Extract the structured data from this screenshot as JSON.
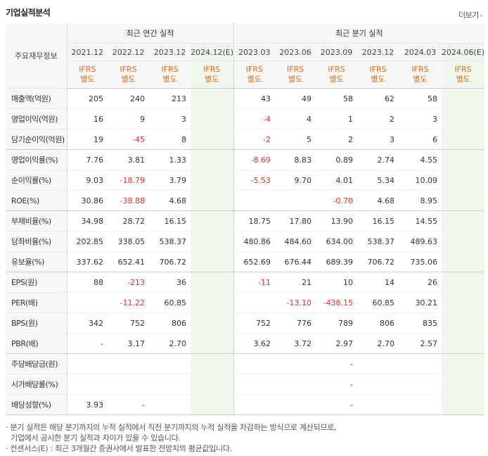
{
  "header": {
    "title": "기업실적분석",
    "more_label": "더보기",
    "more_arrow": "›"
  },
  "table": {
    "row_header_label": "주요재무정보",
    "groups": {
      "annual": "최근 연간 실적",
      "quarterly": "최근 분기 실적"
    },
    "periods": [
      "2021.12",
      "2022.12",
      "2023.12",
      "2024.12(E)",
      "2023.03",
      "2023.06",
      "2023.09",
      "2023.12",
      "2024.03",
      "2024.06(E)"
    ],
    "standards": [
      "IFRS\n별도",
      "IFRS\n별도",
      "IFRS\n별도",
      "IFRS\n별도",
      "IFRS\n별도",
      "IFRS\n별도",
      "IFRS\n별도",
      "IFRS\n별도",
      "IFRS\n별도",
      "IFRS\n별도"
    ],
    "rows": [
      {
        "label": "매출액(억원)",
        "values": [
          "205",
          "240",
          "213",
          "",
          "43",
          "49",
          "58",
          "62",
          "58",
          ""
        ]
      },
      {
        "label": "영업이익(억원)",
        "values": [
          "16",
          "9",
          "3",
          "",
          "-4",
          "4",
          "1",
          "2",
          "3",
          ""
        ]
      },
      {
        "label": "당기순이익(억원)",
        "values": [
          "19",
          "-45",
          "8",
          "",
          "-2",
          "5",
          "2",
          "3",
          "6",
          ""
        ]
      },
      {
        "label": "영업이익률(%)",
        "values": [
          "7.76",
          "3.81",
          "1.33",
          "",
          "-8.69",
          "8.83",
          "0.89",
          "2.74",
          "4.55",
          ""
        ]
      },
      {
        "label": "순이익률(%)",
        "values": [
          "9.03",
          "-18.79",
          "3.79",
          "",
          "-5.53",
          "9.70",
          "4.01",
          "5.34",
          "10.09",
          ""
        ]
      },
      {
        "label": "ROE(%)",
        "values": [
          "30.86",
          "-38.88",
          "4.68",
          "",
          "",
          "",
          "-0.70",
          "4.68",
          "8.95",
          ""
        ]
      },
      {
        "label": "부채비율(%)",
        "values": [
          "34.98",
          "28.72",
          "16.15",
          "",
          "18.75",
          "17.80",
          "13.90",
          "16.15",
          "14.55",
          ""
        ]
      },
      {
        "label": "당좌비율(%)",
        "values": [
          "202.85",
          "338.05",
          "538.37",
          "",
          "480.86",
          "484.60",
          "634.00",
          "538.37",
          "489.63",
          ""
        ]
      },
      {
        "label": "유보율(%)",
        "values": [
          "337.62",
          "652.41",
          "706.72",
          "",
          "652.69",
          "676.44",
          "689.39",
          "706.72",
          "735.06",
          ""
        ]
      },
      {
        "label": "EPS(원)",
        "values": [
          "88",
          "-213",
          "36",
          "",
          "-11",
          "21",
          "10",
          "14",
          "26",
          ""
        ]
      },
      {
        "label": "PER(배)",
        "values": [
          "",
          "-11.22",
          "60.85",
          "",
          "",
          "-13.10",
          "-438.15",
          "60.85",
          "30.21",
          ""
        ]
      },
      {
        "label": "BPS(원)",
        "values": [
          "342",
          "752",
          "806",
          "",
          "752",
          "776",
          "789",
          "806",
          "835",
          ""
        ]
      },
      {
        "label": "PBR(배)",
        "values": [
          "-",
          "3.17",
          "2.70",
          "",
          "3.62",
          "3.72",
          "2.97",
          "2.70",
          "2.57",
          ""
        ]
      },
      {
        "label": "주당배당금(원)",
        "values": [
          "",
          "",
          "",
          "",
          "",
          "",
          "-",
          "",
          "",
          ""
        ]
      },
      {
        "label": "시가배당률(%)",
        "values": [
          "",
          "",
          "",
          "",
          "",
          "",
          "-",
          "",
          "",
          ""
        ]
      },
      {
        "label": "배당성향(%)",
        "values": [
          "3.93",
          "-",
          "",
          "",
          "",
          "",
          "-",
          "",
          "",
          ""
        ]
      }
    ]
  },
  "notes": [
    "분기 실적은 해당 분기까지의 누적 실적에서 직전 분기까지의 누적 실적을 차감하는 방식으로 계산되므로,",
    "기업에서 공시한 분기 실적과 차이가 있을 수 있습니다.",
    "컨센서스(E) : 최근 3개월간 증권사에서 발표한 전망치의 평균값입니다."
  ],
  "colors": {
    "negative": "#e0312b",
    "ifrs": "#e86a15",
    "estimate_bg": "#f0f8ee"
  }
}
